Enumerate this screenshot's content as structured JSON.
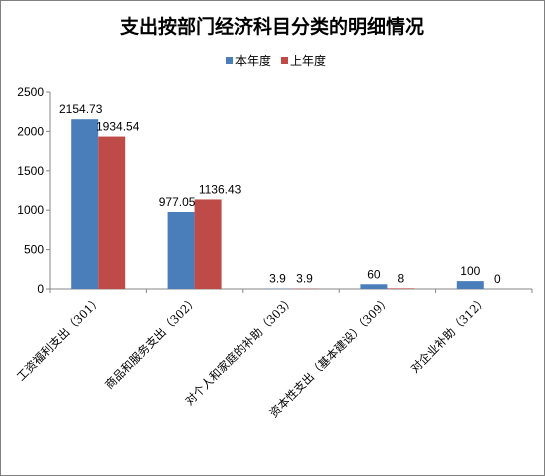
{
  "chart_data": {
    "type": "bar",
    "title": "支出按部门经济科目分类的明细情况",
    "categories": [
      "工资福利支出（301）",
      "商品和服务支出（302）",
      "对个人和家庭的补助（303）",
      "资本性支出（基本建设）（309）",
      "对企业补助（312）"
    ],
    "series": [
      {
        "name": "本年度",
        "values": [
          2154.73,
          977.05,
          3.9,
          60,
          100
        ],
        "labels": [
          "2154.73",
          "977.05",
          "3.9",
          "60",
          "100"
        ],
        "color": "#4a7ebb"
      },
      {
        "name": "上年度",
        "values": [
          1934.54,
          1136.43,
          3.9,
          8,
          0
        ],
        "labels": [
          "1934.54",
          "1136.43",
          "3.9",
          "8",
          "0"
        ],
        "color": "#be4b48"
      }
    ],
    "ylim": [
      0,
      2500
    ],
    "yticks": [
      "0",
      "500",
      "1000",
      "1500",
      "2000",
      "2500"
    ],
    "xlabel": "",
    "ylabel": "",
    "legend_position": "top-center",
    "grid": false
  }
}
